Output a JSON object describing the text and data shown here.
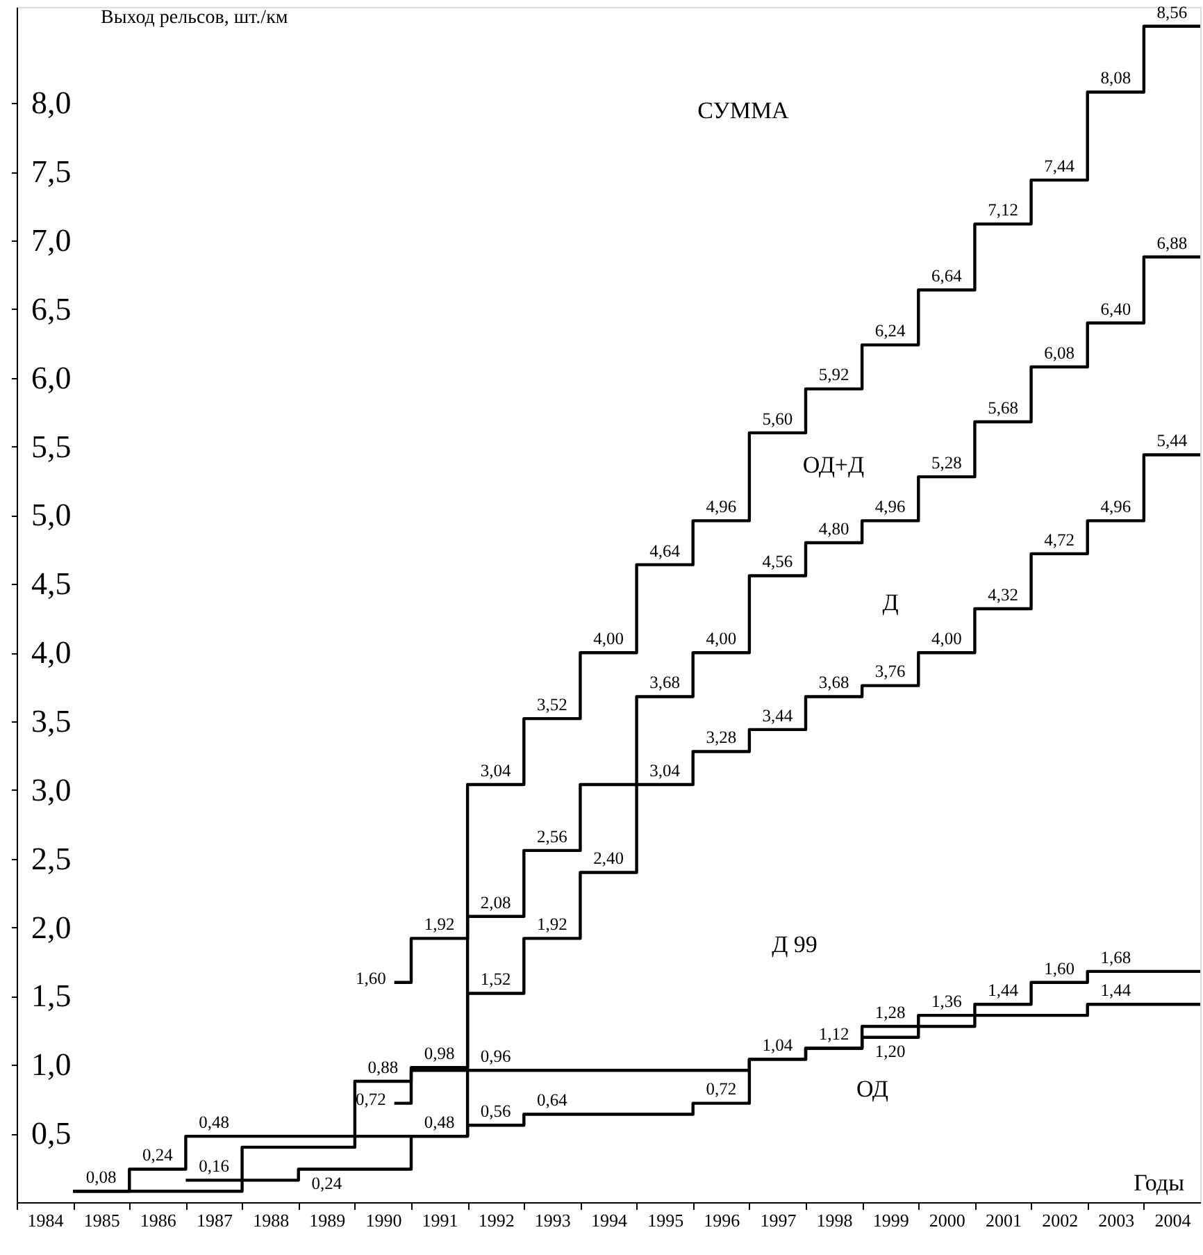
{
  "chart_data": {
    "type": "step",
    "xlabel": "Годы",
    "ylabel": "Выход рельсов, шт./км",
    "xlim": [
      1984,
      2005
    ],
    "ylim": [
      0,
      8.7
    ],
    "xticks": [
      {
        "value": 1984.5,
        "label": "1984"
      },
      {
        "value": 1985.5,
        "label": "1985"
      },
      {
        "value": 1986.5,
        "label": "1986"
      },
      {
        "value": 1987.5,
        "label": "1987"
      },
      {
        "value": 1988.5,
        "label": "1988"
      },
      {
        "value": 1989.5,
        "label": "1989"
      },
      {
        "value": 1990.5,
        "label": "1990"
      },
      {
        "value": 1991.5,
        "label": "1991"
      },
      {
        "value": 1992.5,
        "label": "1992"
      },
      {
        "value": 1993.5,
        "label": "1993"
      },
      {
        "value": 1994.5,
        "label": "1994"
      },
      {
        "value": 1995.5,
        "label": "1995"
      },
      {
        "value": 1996.5,
        "label": "1996"
      },
      {
        "value": 1997.5,
        "label": "1997"
      },
      {
        "value": 1998.5,
        "label": "1998"
      },
      {
        "value": 1999.5,
        "label": "1999"
      },
      {
        "value": 2000.5,
        "label": "2000"
      },
      {
        "value": 2001.5,
        "label": "2001"
      },
      {
        "value": 2002.5,
        "label": "2002"
      },
      {
        "value": 2003.5,
        "label": "2003"
      },
      {
        "value": 2004.5,
        "label": "2004"
      }
    ],
    "yticks": [
      {
        "value": 0.5,
        "label": "0,5"
      },
      {
        "value": 1.0,
        "label": "1,0"
      },
      {
        "value": 1.5,
        "label": "1,5"
      },
      {
        "value": 2.0,
        "label": "2,0"
      },
      {
        "value": 2.5,
        "label": "2,5"
      },
      {
        "value": 3.0,
        "label": "3,0"
      },
      {
        "value": 3.5,
        "label": "3,5"
      },
      {
        "value": 4.0,
        "label": "4,0"
      },
      {
        "value": 4.5,
        "label": "4,5"
      },
      {
        "value": 5.0,
        "label": "5,0"
      },
      {
        "value": 5.5,
        "label": "5,5"
      },
      {
        "value": 6.0,
        "label": "6,0"
      },
      {
        "value": 6.5,
        "label": "6,5"
      },
      {
        "value": 7.0,
        "label": "7,0"
      },
      {
        "value": 7.5,
        "label": "7,5"
      },
      {
        "value": 8.0,
        "label": "8,0"
      }
    ],
    "series": [
      {
        "color": "#000000",
        "x": [
          1990.7,
          1991,
          1992,
          1993,
          1994,
          1995,
          1996,
          1997,
          1998,
          1999,
          2000,
          2001,
          2002,
          2003,
          2004
        ],
        "values": [
          1.6,
          1.92,
          3.04,
          3.52,
          4.0,
          4.64,
          4.96,
          5.6,
          5.92,
          6.24,
          6.64,
          7.12,
          7.44,
          8.08,
          8.56
        ],
        "value_labels": [
          "1,60",
          "1,92",
          "3,04",
          "3,52",
          "4,00",
          "4,64",
          "4,96",
          "5,60",
          "5,92",
          "6,24",
          "6,64",
          "7,12",
          "7,44",
          "8,08",
          "8,56"
        ]
      },
      {
        "color": "#000000",
        "x": [
          1985,
          1986,
          1987,
          1988,
          1989,
          1990,
          1991,
          1992,
          1993,
          1994,
          1995,
          1996,
          1997,
          1998,
          1999,
          2000,
          2001,
          2002,
          2003,
          2004
        ],
        "values": [
          0.08,
          0.08,
          0.08,
          0.4,
          0.4,
          0.88,
          0.98,
          2.08,
          2.56,
          3.04,
          3.68,
          4.0,
          4.56,
          4.8,
          4.96,
          5.28,
          5.68,
          6.08,
          6.4,
          6.88
        ],
        "value_labels": [
          null,
          null,
          null,
          null,
          null,
          "0,88",
          "0,98",
          "2,08",
          "2,56",
          null,
          "3,68",
          "4,00",
          "4,56",
          "4,80",
          "4,96",
          "5,28",
          "5,68",
          "6,08",
          "6,40",
          "6,88"
        ]
      },
      {
        "color": "#000000",
        "x": [
          1985,
          1986,
          1987,
          1988,
          1989,
          1990,
          1991,
          1992,
          1993,
          1994,
          1995,
          1996,
          1997,
          1998,
          1999,
          2000,
          2001,
          2002,
          2003,
          2004
        ],
        "values": [
          0.08,
          0.24,
          0.48,
          0.48,
          0.48,
          0.48,
          0.48,
          1.52,
          1.92,
          2.4,
          3.04,
          3.28,
          3.44,
          3.68,
          3.76,
          4.0,
          4.32,
          4.72,
          4.96,
          5.44
        ],
        "value_labels": [
          "0,08",
          "0,24",
          "0,48",
          null,
          null,
          null,
          "0,48",
          "1,52",
          "1,92",
          "2,40",
          "3,04",
          "3,28",
          "3,44",
          "3,68",
          "3,76",
          "4,00",
          "4,32",
          "4,72",
          "4,96",
          "5,44"
        ]
      },
      {
        "color": "#000000",
        "x": [
          1990.7,
          1991,
          1992,
          1993,
          1994,
          1995,
          1996,
          1997,
          1998,
          1999,
          2000,
          2001,
          2002,
          2003,
          2004
        ],
        "values": [
          0.72,
          0.96,
          0.96,
          0.96,
          0.96,
          0.96,
          0.96,
          1.04,
          1.12,
          1.28,
          1.36,
          1.44,
          1.6,
          1.68,
          1.68
        ],
        "value_labels": [
          "0,72",
          null,
          "0,96",
          null,
          null,
          null,
          null,
          "1,04",
          "1,12",
          "1,28",
          "1,36",
          "1,44",
          "1,60",
          "1,68",
          null
        ]
      },
      {
        "color": "#000000",
        "x": [
          1987,
          1988,
          1989,
          1990,
          1991,
          1992,
          1993,
          1994,
          1995,
          1996,
          1997,
          1998,
          1999,
          2000,
          2001,
          2002,
          2003,
          2004
        ],
        "values": [
          0.16,
          0.16,
          0.24,
          0.24,
          0.48,
          0.56,
          0.64,
          0.64,
          0.64,
          0.72,
          1.04,
          1.12,
          1.2,
          1.28,
          1.36,
          1.36,
          1.44,
          1.44
        ],
        "value_labels": [
          "0,16",
          null,
          "0,24",
          null,
          null,
          "0,56",
          "0,64",
          null,
          null,
          "0,72",
          null,
          null,
          "1,20",
          null,
          null,
          null,
          "1,44",
          null
        ]
      }
    ],
    "annotations": [
      "СУММА",
      "ОД+Д",
      "Д",
      "Д 99",
      "ОД"
    ]
  }
}
